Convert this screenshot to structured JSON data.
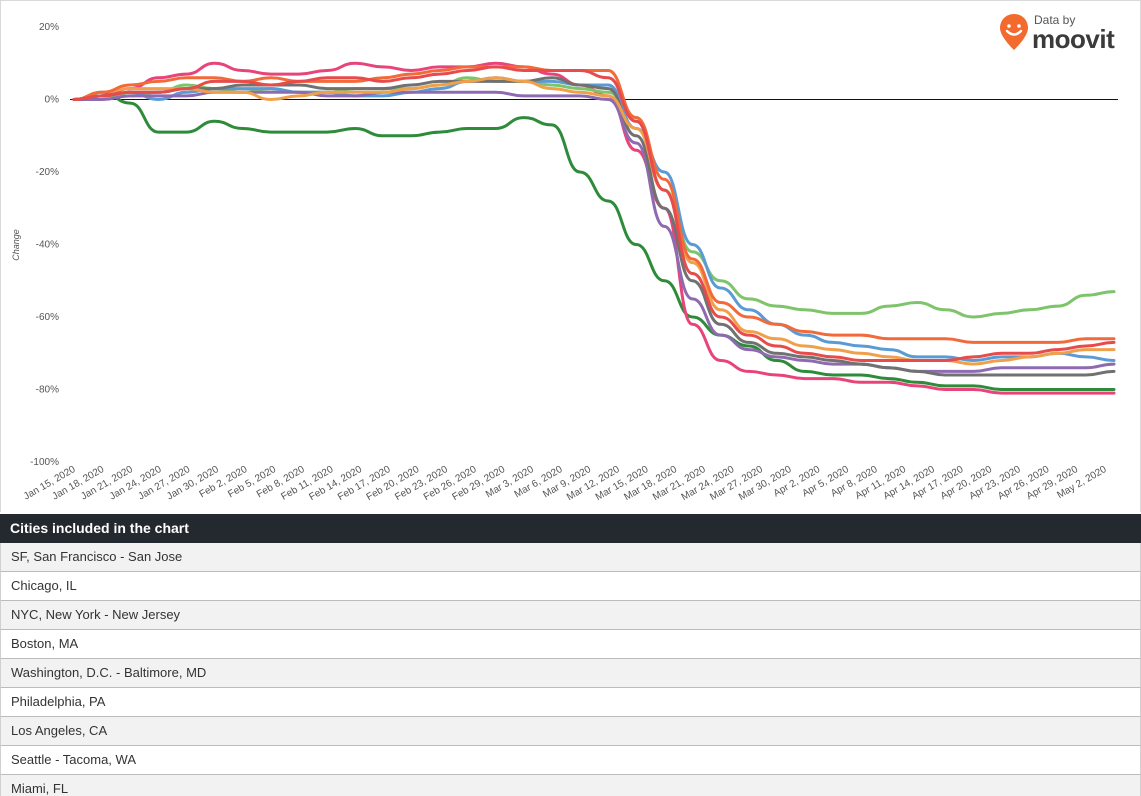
{
  "logo": {
    "byline": "Data by",
    "name": "moovit"
  },
  "table": {
    "header": "Cities included in the chart",
    "rows": [
      "SF, San Francisco - San Jose",
      "Chicago, IL",
      "NYC, New York - New Jersey",
      "Boston, MA",
      "Washington, D.C. - Baltimore, MD",
      "Philadelphia, PA",
      "Los Angeles, CA",
      "Seattle - Tacoma, WA",
      "Miami, FL"
    ]
  },
  "chart_data": {
    "type": "line",
    "title": "",
    "xlabel": "",
    "ylabel": "Change",
    "ylim": [
      -100,
      20
    ],
    "yticks": [
      "20%",
      "0%",
      "-20%",
      "-40%",
      "-60%",
      "-80%",
      "-100%"
    ],
    "ytick_values": [
      20,
      0,
      -20,
      -40,
      -60,
      -80,
      -100
    ],
    "xticks": [
      "Jan 15, 2020",
      "Jan 18, 2020",
      "Jan 21, 2020",
      "Jan 24, 2020",
      "Jan 27, 2020",
      "Jan 30, 2020",
      "Feb 2, 2020",
      "Feb 5, 2020",
      "Feb 8, 2020",
      "Feb 11, 2020",
      "Feb 14, 2020",
      "Feb 17, 2020",
      "Feb 20, 2020",
      "Feb 23, 2020",
      "Feb 26, 2020",
      "Feb 29, 2020",
      "Mar 3, 2020",
      "Mar 6, 2020",
      "Mar 9, 2020",
      "Mar 12, 2020",
      "Mar 15, 2020",
      "Mar 18, 2020",
      "Mar 21, 2020",
      "Mar 24, 2020",
      "Mar 27, 2020",
      "Mar 30, 2020",
      "Apr 2, 2020",
      "Apr 5, 2020",
      "Apr 8, 2020",
      "Apr 11, 2020",
      "Apr 14, 2020",
      "Apr 17, 2020",
      "Apr 20, 2020",
      "Apr 23, 2020",
      "Apr 26, 2020",
      "Apr 29, 2020",
      "May 2, 2020"
    ],
    "x": [
      "Jan 15, 2020",
      "Jan 18, 2020",
      "Jan 21, 2020",
      "Jan 24, 2020",
      "Jan 27, 2020",
      "Jan 30, 2020",
      "Feb 2, 2020",
      "Feb 5, 2020",
      "Feb 8, 2020",
      "Feb 11, 2020",
      "Feb 14, 2020",
      "Feb 17, 2020",
      "Feb 20, 2020",
      "Feb 23, 2020",
      "Feb 26, 2020",
      "Feb 29, 2020",
      "Mar 3, 2020",
      "Mar 6, 2020",
      "Mar 9, 2020",
      "Mar 12, 2020",
      "Mar 15, 2020",
      "Mar 18, 2020",
      "Mar 21, 2020",
      "Mar 24, 2020",
      "Mar 27, 2020",
      "Mar 30, 2020",
      "Apr 2, 2020",
      "Apr 5, 2020",
      "Apr 8, 2020",
      "Apr 11, 2020",
      "Apr 14, 2020",
      "Apr 17, 2020",
      "Apr 20, 2020",
      "Apr 23, 2020",
      "Apr 26, 2020",
      "Apr 29, 2020",
      "May 2, 2020",
      "May 4, 2020"
    ],
    "grid": false,
    "zero_line": true,
    "series": [
      {
        "color": "#2e8b3a",
        "values": [
          0,
          2,
          -1,
          -9,
          -9,
          -6,
          -8,
          -9,
          -9,
          -9,
          -8,
          -10,
          -10,
          -9,
          -8,
          -8,
          -5,
          -7,
          -20,
          -28,
          -40,
          -50,
          -60,
          -65,
          -68,
          -72,
          -75,
          -76,
          -76,
          -77,
          -78,
          -79,
          -79,
          -80,
          -80,
          -80,
          -80,
          -80
        ]
      },
      {
        "color": "#e8447a",
        "values": [
          0,
          1,
          3,
          6,
          7,
          10,
          8,
          7,
          7,
          8,
          10,
          9,
          8,
          9,
          9,
          10,
          9,
          7,
          4,
          1,
          -14,
          -30,
          -62,
          -72,
          -75,
          -76,
          -77,
          -77,
          -78,
          -78,
          -79,
          -80,
          -80,
          -81,
          -81,
          -81,
          -81,
          -81
        ]
      },
      {
        "color": "#7ec46a",
        "values": [
          0,
          1,
          1,
          2,
          4,
          3,
          2,
          3,
          2,
          2,
          3,
          3,
          3,
          4,
          6,
          5,
          5,
          4,
          3,
          2,
          -5,
          -25,
          -42,
          -50,
          -55,
          -57,
          -58,
          -59,
          -59,
          -57,
          -56,
          -58,
          -60,
          -59,
          -58,
          -57,
          -54,
          -53
        ]
      },
      {
        "color": "#5b9bd5",
        "values": [
          0,
          1,
          2,
          0,
          2,
          3,
          3,
          3,
          2,
          2,
          1,
          1,
          2,
          3,
          5,
          6,
          5,
          5,
          4,
          4,
          -8,
          -20,
          -40,
          -52,
          -58,
          -62,
          -65,
          -67,
          -68,
          -69,
          -71,
          -71,
          -72,
          -71,
          -71,
          -70,
          -71,
          -72
        ]
      },
      {
        "color": "#8e6bb0",
        "values": [
          0,
          0,
          1,
          1,
          1,
          2,
          2,
          2,
          2,
          1,
          1,
          2,
          2,
          2,
          2,
          2,
          1,
          1,
          1,
          0,
          -12,
          -35,
          -55,
          -65,
          -69,
          -71,
          -72,
          -73,
          -73,
          -74,
          -75,
          -75,
          -75,
          -74,
          -74,
          -74,
          -74,
          -73
        ]
      },
      {
        "color": "#717171",
        "values": [
          0,
          1,
          2,
          2,
          3,
          3,
          4,
          4,
          4,
          3,
          3,
          3,
          4,
          5,
          5,
          5,
          5,
          6,
          4,
          3,
          -10,
          -30,
          -50,
          -62,
          -67,
          -70,
          -71,
          -72,
          -73,
          -74,
          -75,
          -76,
          -76,
          -76,
          -76,
          -76,
          -76,
          -75
        ]
      },
      {
        "color": "#f0a04b",
        "values": [
          0,
          2,
          3,
          3,
          3,
          2,
          2,
          0,
          1,
          2,
          2,
          2,
          3,
          4,
          5,
          6,
          5,
          3,
          2,
          1,
          -8,
          -25,
          -45,
          -58,
          -64,
          -66,
          -68,
          -69,
          -70,
          -71,
          -72,
          -72,
          -73,
          -72,
          -71,
          -70,
          -69,
          -69
        ]
      },
      {
        "color": "#f26a3a",
        "values": [
          0,
          2,
          4,
          5,
          6,
          6,
          5,
          6,
          5,
          5,
          5,
          6,
          7,
          8,
          9,
          9,
          9,
          8,
          8,
          8,
          -5,
          -22,
          -44,
          -56,
          -60,
          -62,
          -64,
          -65,
          -65,
          -66,
          -66,
          -66,
          -67,
          -67,
          -67,
          -67,
          -66,
          -66
        ]
      },
      {
        "color": "#e84b4b",
        "values": [
          0,
          1,
          2,
          2,
          3,
          5,
          5,
          4,
          5,
          6,
          6,
          5,
          6,
          7,
          8,
          9,
          8,
          8,
          8,
          6,
          -6,
          -25,
          -48,
          -60,
          -65,
          -68,
          -70,
          -71,
          -72,
          -72,
          -72,
          -72,
          -71,
          -70,
          -70,
          -69,
          -68,
          -67
        ]
      }
    ]
  }
}
